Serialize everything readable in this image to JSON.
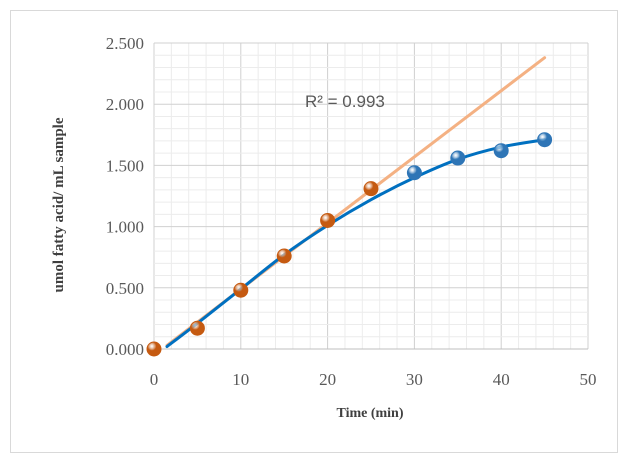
{
  "chart_data": {
    "type": "scatter",
    "xlabel": "Time (min)",
    "ylabel": "umol fatty acid/ mL sample",
    "xlim": [
      0,
      50
    ],
    "ylim": [
      0,
      2.5
    ],
    "xticks": [
      "0",
      "10",
      "20",
      "30",
      "40",
      "50"
    ],
    "yticks": [
      "0.000",
      "0.500",
      "1.000",
      "1.500",
      "2.000",
      "2.500"
    ],
    "grid": true,
    "minor_grid": true,
    "legend": "none",
    "series": [
      {
        "color": "#c55a11",
        "marker": "circle",
        "x": [
          0,
          5,
          10,
          15,
          20,
          25
        ],
        "y": [
          0.0,
          0.17,
          0.48,
          0.76,
          1.05,
          1.31
        ]
      },
      {
        "color": "#2e75b6",
        "marker": "circle",
        "x": [
          30,
          35,
          40,
          45
        ],
        "y": [
          1.44,
          1.56,
          1.62,
          1.71
        ]
      }
    ],
    "trendlines": [
      {
        "kind": "linear",
        "color": "#f4b183",
        "x": [
          1.5,
          45
        ],
        "y": [
          0.03,
          2.38
        ]
      },
      {
        "kind": "polynomial",
        "color": "#0070c0",
        "x": [
          1.5,
          5,
          10,
          15,
          20,
          25,
          30,
          35,
          40,
          45
        ],
        "y": [
          0.02,
          0.21,
          0.49,
          0.77,
          1.01,
          1.22,
          1.4,
          1.55,
          1.65,
          1.71
        ]
      }
    ],
    "annotation": "R² = 0.993"
  }
}
